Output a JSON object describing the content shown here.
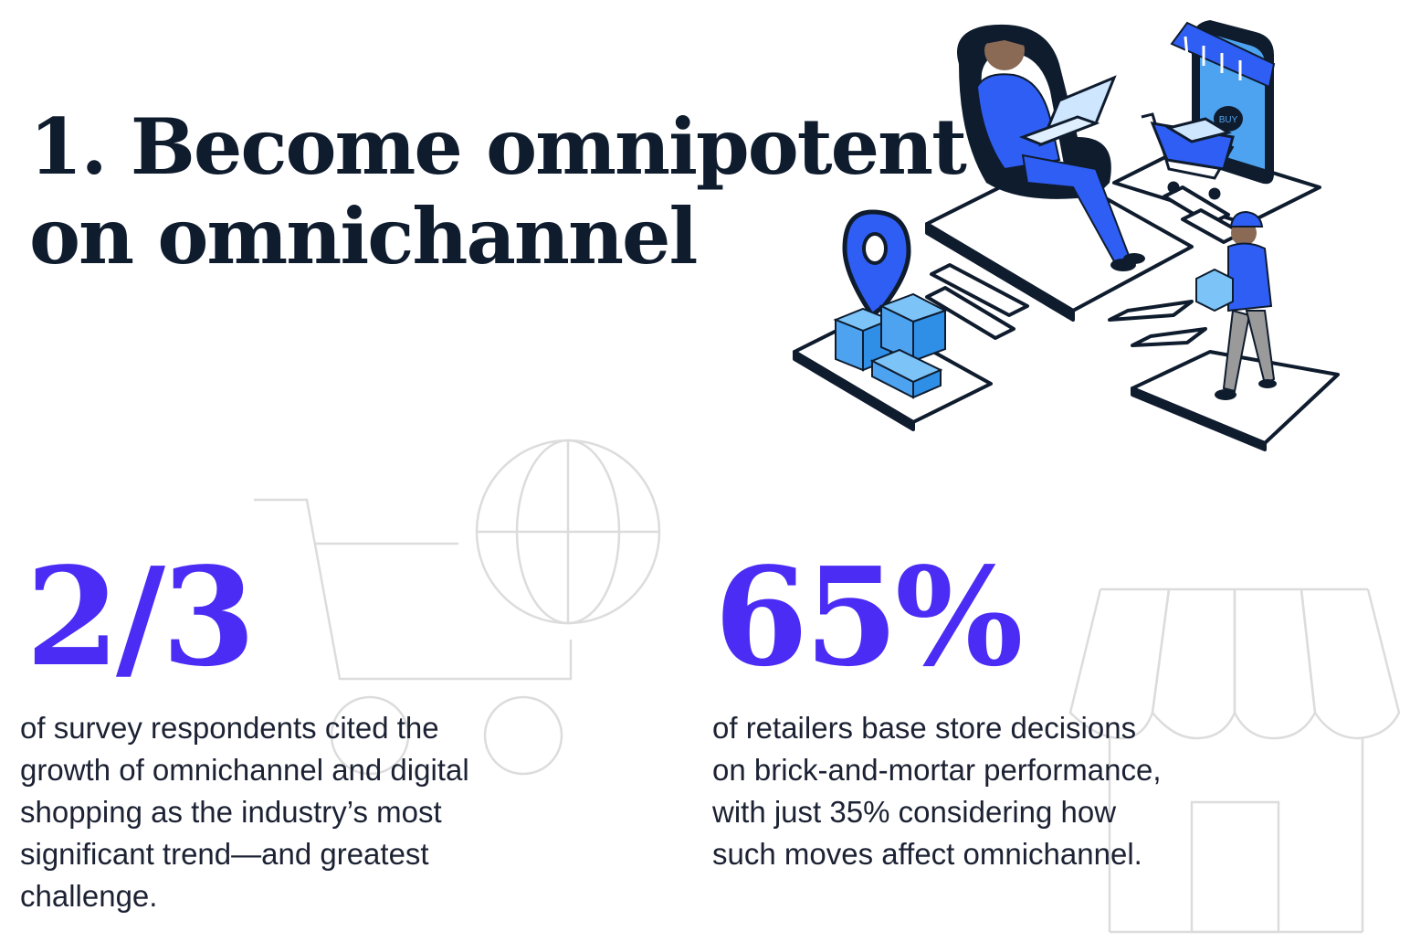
{
  "heading": {
    "line1": "1. Become omnipotent",
    "line2": "on omnichannel"
  },
  "stats": [
    {
      "value": "2/3",
      "lines": [
        "of survey respondents cited the",
        "growth of omnichannel and digital",
        "shopping as the industry’s most",
        "significant trend—and greatest",
        "challenge."
      ]
    },
    {
      "value": "65%",
      "lines": [
        "of retailers base store decisions",
        "on brick-and-mortar performance,",
        "with just 35% considering how",
        "such moves affect omnichannel."
      ]
    }
  ],
  "illustration": {
    "icons": [
      "headset-person-icon",
      "laptop-icon",
      "phone-store-icon",
      "shopping-cart-icon",
      "location-pin-icon",
      "package-boxes-icon",
      "delivery-person-icon"
    ],
    "phone_badge": "BUY"
  },
  "background_icons": [
    "cart-outline-icon",
    "globe-outline-icon",
    "storefront-outline-icon"
  ],
  "colors": {
    "heading": "#0f1c2e",
    "stat_value": "#4a2cf5",
    "body_text": "#1c2233",
    "accent_blue": "#2f5ef5",
    "light_blue": "#4da3f0",
    "outline_gray": "#d9d9d9"
  }
}
